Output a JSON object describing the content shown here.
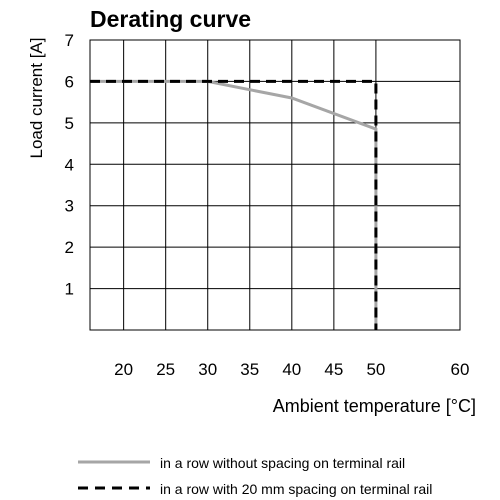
{
  "chart_data": {
    "type": "line",
    "title": "Derating curve",
    "xlabel": "Ambient temperature [°C]",
    "ylabel": "Load current [A]",
    "xlim": [
      16,
      60
    ],
    "ylim": [
      0,
      7
    ],
    "xticks": [
      20,
      25,
      30,
      35,
      40,
      45,
      50,
      60
    ],
    "yticks": [
      1,
      2,
      3,
      4,
      5,
      6,
      7
    ],
    "grid": true,
    "legend_position": "bottom",
    "series": [
      {
        "name": "in a row without spacing on terminal rail",
        "style": "solid",
        "color": "#a6a6a6",
        "points": [
          [
            16,
            6.0
          ],
          [
            30,
            6.0
          ],
          [
            40,
            5.6
          ],
          [
            50,
            4.85
          ],
          [
            50,
            0
          ]
        ]
      },
      {
        "name": "in a row with 20 mm spacing on terminal rail",
        "style": "dashed",
        "color": "#000000",
        "points": [
          [
            16,
            6.0
          ],
          [
            50,
            6.0
          ],
          [
            50,
            0
          ]
        ]
      }
    ]
  }
}
